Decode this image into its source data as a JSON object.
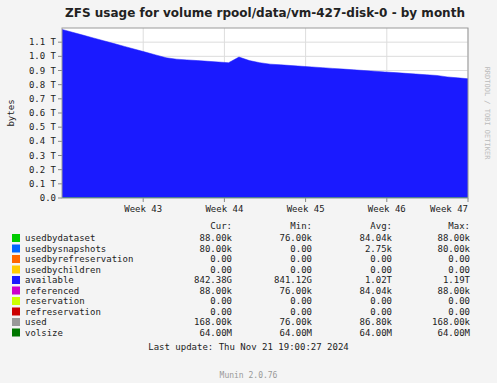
{
  "chart_data": {
    "type": "area",
    "title": "ZFS usage for volume rpool/data/vm-427-disk-0 - by month",
    "y_label": "bytes",
    "x": [
      0,
      1,
      2,
      3,
      4,
      5,
      6,
      7,
      8,
      9,
      10,
      11,
      12,
      13,
      14,
      15,
      16,
      17,
      18,
      19,
      20,
      21,
      22,
      23,
      24,
      25,
      26,
      27,
      28,
      29,
      30,
      31,
      32,
      33,
      34,
      35,
      36,
      37,
      38,
      39
    ],
    "xlim": [
      0,
      39
    ],
    "xticks": [
      {
        "value": 7.8,
        "label": "Week 43"
      },
      {
        "value": 15.6,
        "label": "Week 44"
      },
      {
        "value": 23.4,
        "label": "Week 45"
      },
      {
        "value": 31.2,
        "label": "Week 46"
      },
      {
        "value": 39,
        "label": "Week 47"
      }
    ],
    "ylim": [
      0,
      1200000000000
    ],
    "yticks": [
      {
        "value": 0,
        "label": "0.0"
      },
      {
        "value": 100000000000,
        "label": "0.1 T"
      },
      {
        "value": 200000000000,
        "label": "0.2 T"
      },
      {
        "value": 300000000000,
        "label": "0.3 T"
      },
      {
        "value": 400000000000,
        "label": "0.4 T"
      },
      {
        "value": 500000000000,
        "label": "0.5 T"
      },
      {
        "value": 600000000000,
        "label": "0.6 T"
      },
      {
        "value": 700000000000,
        "label": "0.7 T"
      },
      {
        "value": 800000000000,
        "label": "0.8 T"
      },
      {
        "value": 900000000000,
        "label": "0.9 T"
      },
      {
        "value": 1000000000000,
        "label": "1.0 T"
      },
      {
        "value": 1100000000000,
        "label": "1.1 T"
      }
    ],
    "grid": true,
    "series": [
      {
        "name": "available",
        "color": "#1a1aff",
        "values": [
          1190000000000,
          1170000000000,
          1150000000000,
          1130000000000,
          1110000000000,
          1090000000000,
          1070000000000,
          1050000000000,
          1030000000000,
          1010000000000,
          990000000000,
          980000000000,
          975000000000,
          970000000000,
          965000000000,
          960000000000,
          955000000000,
          995000000000,
          970000000000,
          955000000000,
          945000000000,
          940000000000,
          935000000000,
          930000000000,
          925000000000,
          920000000000,
          915000000000,
          910000000000,
          905000000000,
          900000000000,
          895000000000,
          890000000000,
          885000000000,
          880000000000,
          875000000000,
          870000000000,
          865000000000,
          855000000000,
          848000000000,
          842000000000
        ]
      },
      {
        "name": "usedbydataset",
        "color": "#00cc00",
        "values": [
          88000,
          88000,
          88000,
          88000,
          88000,
          88000,
          88000,
          88000,
          88000,
          88000,
          88000,
          88000,
          88000,
          88000,
          88000,
          88000,
          88000,
          88000,
          88000,
          88000,
          88000,
          88000,
          88000,
          88000,
          88000,
          88000,
          88000,
          88000,
          88000,
          88000,
          88000,
          88000,
          88000,
          88000,
          88000,
          88000,
          88000,
          88000,
          88000,
          88000
        ]
      }
    ],
    "legend_table": {
      "headers": [
        "Cur:",
        "Min:",
        "Avg:",
        "Max:"
      ],
      "rows": [
        {
          "name": "usedbydataset",
          "color": "#00cc00",
          "cur": "88.00k",
          "min": "76.00k",
          "avg": "84.04k",
          "max": "88.00k"
        },
        {
          "name": "usedbysnapshots",
          "color": "#0066ff",
          "cur": "80.00k",
          "min": "0.00",
          "avg": "2.75k",
          "max": "80.00k"
        },
        {
          "name": "usedbyrefreservation",
          "color": "#ff6600",
          "cur": "0.00",
          "min": "0.00",
          "avg": "0.00",
          "max": "0.00"
        },
        {
          "name": "usedbychildren",
          "color": "#ffcc00",
          "cur": "0.00",
          "min": "0.00",
          "avg": "0.00",
          "max": "0.00"
        },
        {
          "name": "available",
          "color": "#1a1aff",
          "cur": "842.38G",
          "min": "841.12G",
          "avg": "1.02T",
          "max": "1.19T"
        },
        {
          "name": "referenced",
          "color": "#cc00cc",
          "cur": "88.00k",
          "min": "76.00k",
          "avg": "84.04k",
          "max": "88.00k"
        },
        {
          "name": "reservation",
          "color": "#ccff00",
          "cur": "0.00",
          "min": "0.00",
          "avg": "0.00",
          "max": "0.00"
        },
        {
          "name": "refreservation",
          "color": "#cc0000",
          "cur": "0.00",
          "min": "0.00",
          "avg": "0.00",
          "max": "0.00"
        },
        {
          "name": "used",
          "color": "#999999",
          "cur": "168.00k",
          "min": "76.00k",
          "avg": "86.80k",
          "max": "168.00k"
        },
        {
          "name": "volsize",
          "color": "#007700",
          "cur": "64.00M",
          "min": "64.00M",
          "avg": "64.00M",
          "max": "64.00M"
        }
      ]
    },
    "annotations": [
      "Last update: Thu Nov 21 19:00:27 2024",
      "Munin 2.0.76",
      "RRDTOOL / TOBI OETIKER"
    ]
  }
}
